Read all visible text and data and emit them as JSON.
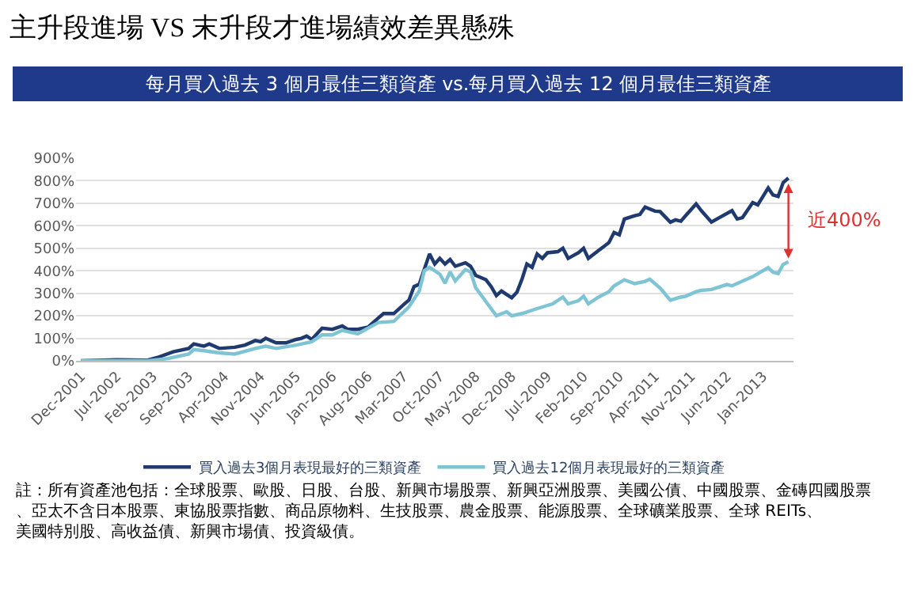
{
  "chart_data": {
    "type": "line",
    "title": "主升段進場 VS 末升段才進場績效差異懸殊",
    "subtitle": "每月買入過去 3 個月最佳三類資產 vs.每月買入過去 12 個月最佳三類資產",
    "series": [
      {
        "name": "買入過去3個月表現最好的三類資產",
        "color": "#1f3a6e",
        "x": [
          "2001-12",
          "2002-07",
          "2003-01",
          "2003-03",
          "2003-06",
          "2003-09",
          "2003-10",
          "2003-12",
          "2004-01",
          "2004-03",
          "2004-06",
          "2004-08",
          "2004-10",
          "2004-11",
          "2004-12",
          "2005-02",
          "2005-04",
          "2005-06",
          "2005-07",
          "2005-08",
          "2005-09",
          "2005-11",
          "2006-01",
          "2006-03",
          "2006-04",
          "2006-06",
          "2006-08",
          "2006-10",
          "2006-11",
          "2007-01",
          "2007-03",
          "2007-04",
          "2007-05",
          "2007-06",
          "2007-08",
          "2007-09",
          "2007-10",
          "2007-11",
          "2007-12",
          "2008-01",
          "2008-03",
          "2008-04",
          "2008-05",
          "2008-07",
          "2008-08",
          "2008-09",
          "2008-10",
          "2008-12",
          "2009-01",
          "2009-02",
          "2009-03",
          "2009-04",
          "2009-05",
          "2009-06",
          "2009-07",
          "2009-09",
          "2009-10",
          "2009-11",
          "2010-01",
          "2010-02",
          "2010-03",
          "2010-05",
          "2010-07",
          "2010-08",
          "2010-09",
          "2010-10",
          "2010-12",
          "2011-01",
          "2011-02",
          "2011-04",
          "2011-05",
          "2011-07",
          "2011-08",
          "2011-09",
          "2011-10",
          "2011-12",
          "2012-01",
          "2012-03",
          "2012-05",
          "2012-07",
          "2012-08",
          "2012-09",
          "2012-11",
          "2012-12",
          "2013-02",
          "2013-03",
          "2013-04",
          "2013-05",
          "2013-06"
        ],
        "values": [
          0,
          5,
          3,
          15,
          40,
          55,
          75,
          65,
          75,
          55,
          60,
          70,
          90,
          85,
          100,
          80,
          80,
          95,
          100,
          110,
          95,
          145,
          140,
          155,
          140,
          140,
          150,
          190,
          210,
          210,
          250,
          270,
          330,
          340,
          475,
          430,
          455,
          430,
          450,
          420,
          435,
          420,
          380,
          360,
          330,
          290,
          310,
          280,
          305,
          365,
          430,
          415,
          475,
          455,
          480,
          485,
          500,
          455,
          480,
          500,
          455,
          490,
          525,
          570,
          560,
          630,
          645,
          650,
          683,
          665,
          663,
          616,
          626,
          620,
          646,
          697,
          667,
          616,
          642,
          667,
          630,
          636,
          703,
          693,
          768,
          737,
          730,
          792,
          812
        ]
      },
      {
        "name": "買入過去12個月表現最好的三類資產",
        "color": "#7ec4d4",
        "x": [
          "2001-12",
          "2003-01",
          "2003-05",
          "2003-09",
          "2003-10",
          "2003-12",
          "2004-03",
          "2004-06",
          "2004-10",
          "2004-12",
          "2005-02",
          "2005-06",
          "2005-09",
          "2005-11",
          "2006-01",
          "2006-03",
          "2006-06",
          "2006-10",
          "2007-01",
          "2007-04",
          "2007-06",
          "2007-07",
          "2007-08",
          "2007-10",
          "2007-11",
          "2007-12",
          "2008-01",
          "2008-03",
          "2008-04",
          "2008-05",
          "2008-07",
          "2008-09",
          "2008-11",
          "2008-12",
          "2009-02",
          "2009-05",
          "2009-08",
          "2009-10",
          "2009-11",
          "2010-01",
          "2010-02",
          "2010-03",
          "2010-05",
          "2010-07",
          "2010-08",
          "2010-10",
          "2010-12",
          "2011-02",
          "2011-03",
          "2011-05",
          "2011-07",
          "2011-09",
          "2011-10",
          "2011-12",
          "2012-01",
          "2012-03",
          "2012-06",
          "2012-07",
          "2012-10",
          "2012-11",
          "2013-02",
          "2013-03",
          "2013-04",
          "2013-05",
          "2013-06"
        ],
        "values": [
          0,
          0,
          10,
          30,
          50,
          45,
          35,
          30,
          55,
          65,
          55,
          70,
          85,
          115,
          115,
          135,
          120,
          170,
          175,
          240,
          310,
          400,
          415,
          385,
          345,
          395,
          355,
          405,
          395,
          325,
          263,
          200,
          218,
          200,
          210,
          232,
          253,
          283,
          253,
          267,
          287,
          253,
          283,
          307,
          333,
          360,
          343,
          353,
          363,
          323,
          269,
          283,
          287,
          307,
          313,
          317,
          339,
          333,
          364,
          374,
          414,
          394,
          388,
          428,
          440
        ]
      }
    ],
    "xlim": [
      "2001-11",
      "2013-07"
    ],
    "xticks": [
      {
        "value": "2001-12",
        "label": "Dec-2001"
      },
      {
        "value": "2002-07",
        "label": "Jul-2002"
      },
      {
        "value": "2003-02",
        "label": "Feb-2003"
      },
      {
        "value": "2003-09",
        "label": "Sep-2003"
      },
      {
        "value": "2004-04",
        "label": "Apr-2004"
      },
      {
        "value": "2004-11",
        "label": "Nov-2004"
      },
      {
        "value": "2005-06",
        "label": "Jun-2005"
      },
      {
        "value": "2006-01",
        "label": "Jan-2006"
      },
      {
        "value": "2006-08",
        "label": "Aug-2006"
      },
      {
        "value": "2007-03",
        "label": "Mar-2007"
      },
      {
        "value": "2007-10",
        "label": "Oct-2007"
      },
      {
        "value": "2008-05",
        "label": "May-2008"
      },
      {
        "value": "2008-12",
        "label": "Dec-2008"
      },
      {
        "value": "2009-07",
        "label": "Jul-2009"
      },
      {
        "value": "2010-02",
        "label": "Feb-2010"
      },
      {
        "value": "2010-09",
        "label": "Sep-2010"
      },
      {
        "value": "2011-04",
        "label": "Apr-2011"
      },
      {
        "value": "2011-11",
        "label": "Nov-2011"
      },
      {
        "value": "2012-06",
        "label": "Jun-2012"
      },
      {
        "value": "2013-01",
        "label": "Jan-2013"
      }
    ],
    "ylim": [
      0,
      900
    ],
    "yticks": [
      {
        "value": 0,
        "label": "0%"
      },
      {
        "value": 100,
        "label": "100%"
      },
      {
        "value": 200,
        "label": "200%"
      },
      {
        "value": 300,
        "label": "300%"
      },
      {
        "value": 400,
        "label": "400%"
      },
      {
        "value": 500,
        "label": "500%"
      },
      {
        "value": 600,
        "label": "600%"
      },
      {
        "value": 700,
        "label": "700%"
      },
      {
        "value": 800,
        "label": "800%"
      },
      {
        "value": 900,
        "label": "900%"
      }
    ],
    "grid": "y",
    "legend": "bottom",
    "marker": "none",
    "line_style": "solid",
    "annotations": [
      "近400%",
      "註：所有資產池包括：全球股票、歐股、日股、台股、新興市場股票、新興亞洲股票、美國公債、中國股票、金磚四國股票、亞太不含日本股票、東協股票指數、商品原物料、生技股票、農金股票、能源股票、全球礦業股票、全球 REITs、美國特別股、高收益債、新興市場債、投資級債。"
    ]
  }
}
